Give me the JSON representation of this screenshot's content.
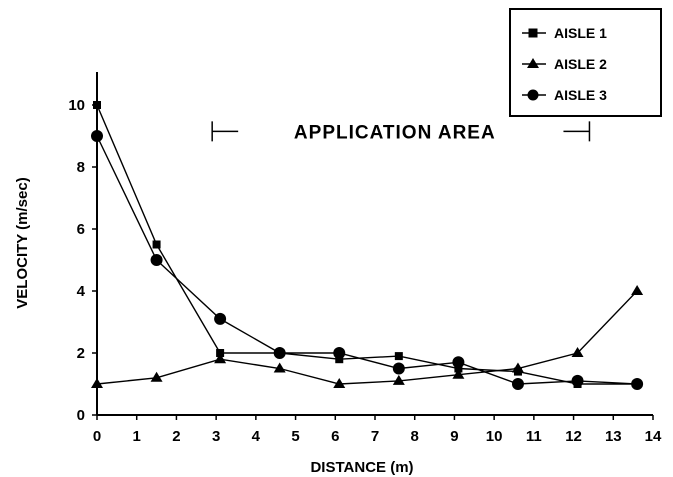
{
  "chart_data": {
    "type": "line",
    "xlabel": "DISTANCE (m)",
    "ylabel": "VELOCITY (m/sec)",
    "xlim": [
      0,
      14
    ],
    "ylim": [
      0,
      11
    ],
    "x_ticks": [
      0,
      1,
      2,
      3,
      4,
      5,
      6,
      7,
      8,
      9,
      10,
      11,
      12,
      13,
      14
    ],
    "y_ticks": [
      0,
      2,
      4,
      6,
      8,
      10
    ],
    "grid": false,
    "legend_position": "top-right",
    "series": [
      {
        "name": "AISLE 1",
        "marker": "square",
        "x": [
          0,
          1.5,
          3.1,
          4.6,
          6.1,
          7.6,
          9.1,
          10.6,
          12.1,
          13.6
        ],
        "y": [
          10.0,
          5.5,
          2.0,
          2.0,
          1.8,
          1.9,
          1.5,
          1.4,
          1.0,
          1.0
        ]
      },
      {
        "name": "AISLE 2",
        "marker": "triangle",
        "x": [
          0,
          1.5,
          3.1,
          4.6,
          6.1,
          7.6,
          9.1,
          10.6,
          12.1,
          13.6
        ],
        "y": [
          1.0,
          1.2,
          1.8,
          1.5,
          1.0,
          1.1,
          1.3,
          1.5,
          2.0,
          4.0
        ]
      },
      {
        "name": "AISLE 3",
        "marker": "circle",
        "x": [
          0,
          1.5,
          3.1,
          4.6,
          6.1,
          7.6,
          9.1,
          10.6,
          12.1,
          13.6
        ],
        "y": [
          9.0,
          5.0,
          3.1,
          2.0,
          2.0,
          1.5,
          1.7,
          1.0,
          1.1,
          1.0
        ]
      }
    ],
    "annotation": {
      "text": "APPLICATION AREA",
      "x_start": 2.9,
      "x_end": 12.4,
      "y": 9.15
    }
  }
}
